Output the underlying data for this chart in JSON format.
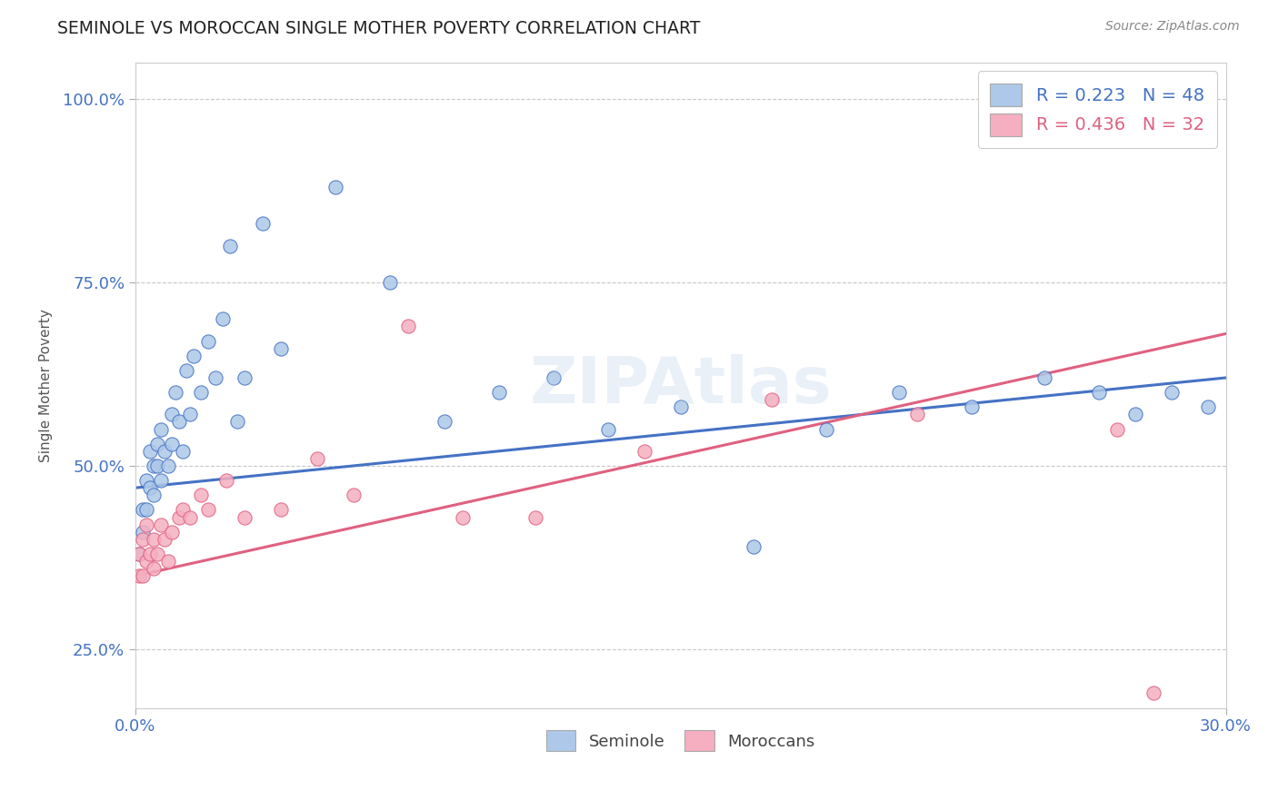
{
  "title": "SEMINOLE VS MOROCCAN SINGLE MOTHER POVERTY CORRELATION CHART",
  "source_text": "Source: ZipAtlas.com",
  "ylabel": "Single Mother Poverty",
  "xlim": [
    0.0,
    0.3
  ],
  "ylim": [
    0.17,
    1.05
  ],
  "x_ticks": [
    0.0,
    0.3
  ],
  "x_tick_labels": [
    "0.0%",
    "30.0%"
  ],
  "y_ticks": [
    0.25,
    0.5,
    0.75,
    1.0
  ],
  "y_tick_labels": [
    "25.0%",
    "50.0%",
    "75.0%",
    "100.0%"
  ],
  "seminole_color": "#adc8e8",
  "moroccan_color": "#f5afc0",
  "seminole_line_color": "#4472c4",
  "moroccan_line_color": "#e06080",
  "R_seminole": 0.223,
  "N_seminole": 48,
  "R_moroccan": 0.436,
  "N_moroccan": 32,
  "background_color": "#ffffff",
  "grid_color": "#c8c8c8",
  "watermark": "ZIPAtlas",
  "legend_labels": [
    "Seminole",
    "Moroccans"
  ],
  "seminole_x": [
    0.001,
    0.002,
    0.002,
    0.003,
    0.003,
    0.004,
    0.004,
    0.005,
    0.005,
    0.006,
    0.006,
    0.007,
    0.007,
    0.008,
    0.009,
    0.01,
    0.01,
    0.011,
    0.012,
    0.013,
    0.014,
    0.015,
    0.016,
    0.018,
    0.02,
    0.022,
    0.024,
    0.026,
    0.028,
    0.03,
    0.035,
    0.04,
    0.055,
    0.07,
    0.085,
    0.1,
    0.115,
    0.13,
    0.15,
    0.17,
    0.19,
    0.21,
    0.23,
    0.25,
    0.265,
    0.275,
    0.285,
    0.295
  ],
  "seminole_y": [
    0.38,
    0.41,
    0.44,
    0.48,
    0.44,
    0.47,
    0.52,
    0.5,
    0.46,
    0.53,
    0.5,
    0.55,
    0.48,
    0.52,
    0.5,
    0.57,
    0.53,
    0.6,
    0.56,
    0.52,
    0.63,
    0.57,
    0.65,
    0.6,
    0.67,
    0.62,
    0.7,
    0.8,
    0.56,
    0.62,
    0.83,
    0.66,
    0.88,
    0.75,
    0.56,
    0.6,
    0.62,
    0.55,
    0.58,
    0.39,
    0.55,
    0.6,
    0.58,
    0.62,
    0.6,
    0.57,
    0.6,
    0.58
  ],
  "moroccan_x": [
    0.001,
    0.001,
    0.002,
    0.002,
    0.003,
    0.003,
    0.004,
    0.005,
    0.005,
    0.006,
    0.007,
    0.008,
    0.009,
    0.01,
    0.012,
    0.013,
    0.015,
    0.018,
    0.02,
    0.025,
    0.03,
    0.04,
    0.05,
    0.06,
    0.075,
    0.09,
    0.11,
    0.14,
    0.175,
    0.215,
    0.27,
    0.28
  ],
  "moroccan_y": [
    0.35,
    0.38,
    0.35,
    0.4,
    0.37,
    0.42,
    0.38,
    0.36,
    0.4,
    0.38,
    0.42,
    0.4,
    0.37,
    0.41,
    0.43,
    0.44,
    0.43,
    0.46,
    0.44,
    0.48,
    0.43,
    0.44,
    0.51,
    0.46,
    0.69,
    0.43,
    0.43,
    0.52,
    0.59,
    0.57,
    0.55,
    0.19
  ],
  "seminole_line_y0": 0.47,
  "seminole_line_y1": 0.62,
  "moroccan_line_y0": 0.35,
  "moroccan_line_y1": 0.68
}
